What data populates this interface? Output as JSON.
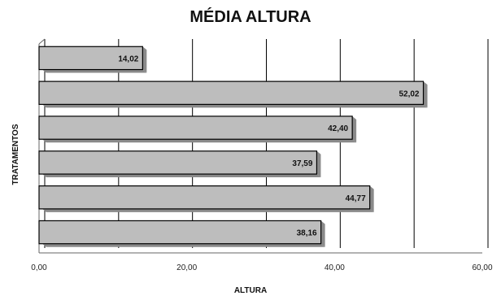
{
  "chart_data": {
    "type": "bar",
    "orientation": "horizontal",
    "title": "MÉDIA ALTURA",
    "xlabel": "ALTURA",
    "ylabel": "TRATAMENTOS",
    "xlim": [
      0,
      60
    ],
    "x_ticks": [
      "0,00",
      "20,00",
      "40,00",
      "60,00"
    ],
    "values": [
      14.02,
      52.02,
      42.4,
      37.59,
      44.77,
      38.16
    ],
    "value_labels": [
      "14,02",
      "52,02",
      "42,40",
      "37,59",
      "44,77",
      "38,16"
    ],
    "bar_color": "#bdbdbd",
    "shadow_color": "#8a8a8a",
    "grid": "vertical",
    "legend": "none"
  }
}
